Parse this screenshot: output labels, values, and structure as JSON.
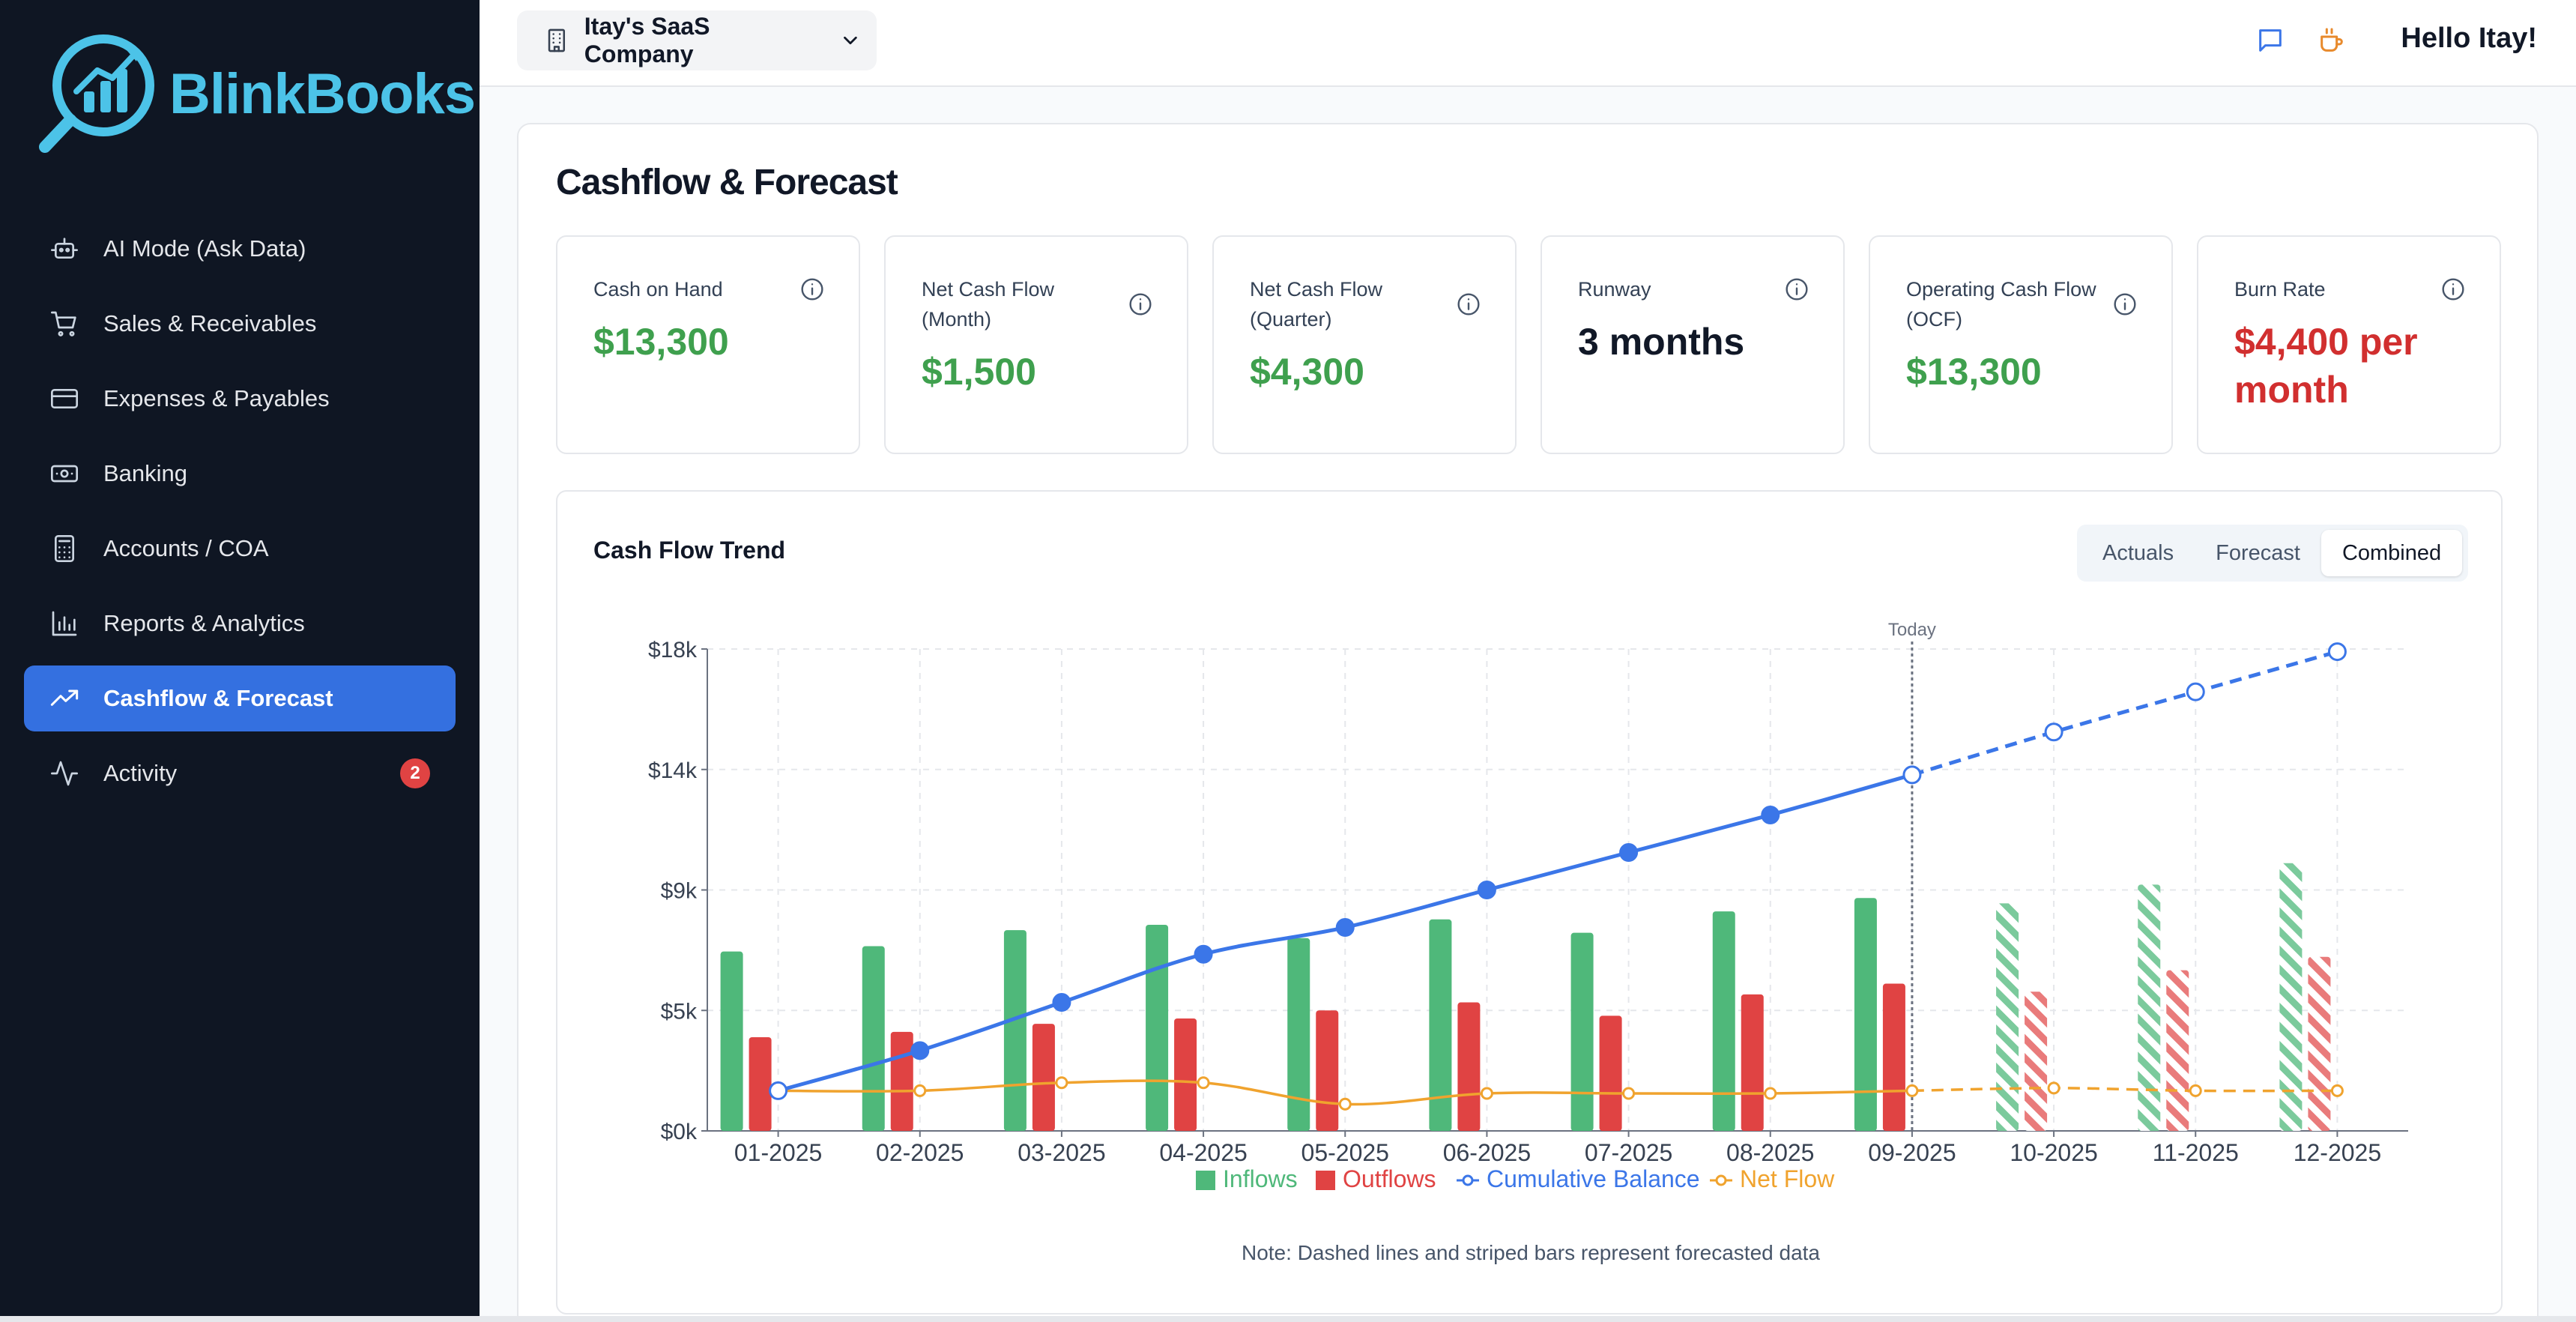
{
  "app": {
    "brand": "BlinkBooks",
    "accent": "#3470e0",
    "logo_color": "#4cc3e8"
  },
  "sidebar": {
    "items": [
      {
        "label": "AI Mode (Ask Data)",
        "icon": "robot-icon"
      },
      {
        "label": "Sales & Receivables",
        "icon": "cart-icon"
      },
      {
        "label": "Expenses & Payables",
        "icon": "credit-card-icon"
      },
      {
        "label": "Banking",
        "icon": "banknote-icon"
      },
      {
        "label": "Accounts / COA",
        "icon": "calculator-icon"
      },
      {
        "label": "Reports & Analytics",
        "icon": "bar-chart-icon"
      },
      {
        "label": "Cashflow & Forecast",
        "icon": "trending-up-icon",
        "active": true
      },
      {
        "label": "Activity",
        "icon": "activity-icon",
        "badge": "2"
      }
    ]
  },
  "header": {
    "company": "Itay's SaaS Company",
    "greeting": "Hello Itay!"
  },
  "page": {
    "title": "Cashflow & Forecast"
  },
  "kpis": [
    {
      "label": "Cash on Hand",
      "value": "$13,300",
      "color": "#3fa04e"
    },
    {
      "label": "Net Cash Flow (Month)",
      "value": "$1,500",
      "color": "#3fa04e"
    },
    {
      "label": "Net Cash Flow (Quarter)",
      "value": "$4,300",
      "color": "#3fa04e"
    },
    {
      "label": "Runway",
      "value": "3 months",
      "color": "#111827"
    },
    {
      "label": "Operating Cash Flow (OCF)",
      "value": "$13,300",
      "color": "#3fa04e"
    },
    {
      "label": "Burn Rate",
      "value": "$4,400 per month",
      "color": "#d12f2f"
    }
  ],
  "chart_section": {
    "title": "Cash Flow Trend",
    "toggle": [
      "Actuals",
      "Forecast",
      "Combined"
    ],
    "active_toggle": "Combined",
    "note": "Note: Dashed lines and striped bars represent forecasted data"
  },
  "chart_data": {
    "type": "bar",
    "categories": [
      "01-2025",
      "02-2025",
      "03-2025",
      "04-2025",
      "05-2025",
      "06-2025",
      "07-2025",
      "08-2025",
      "09-2025",
      "10-2025",
      "11-2025",
      "12-2025"
    ],
    "forecast_from_index": 9,
    "today_marker": {
      "at": "09-2025",
      "label": "Today"
    },
    "y_ticks": [
      "$0k",
      "$5k",
      "$9k",
      "$14k",
      "$18k"
    ],
    "y_tick_values": [
      0,
      4500,
      9000,
      13500,
      18000
    ],
    "ylim": [
      0,
      18000
    ],
    "grid": true,
    "legend_placement": "bottom",
    "series": [
      {
        "name": "Inflows",
        "kind": "bar",
        "color": "#4fb87a",
        "values": [
          6700,
          6900,
          7500,
          7700,
          7200,
          7900,
          7400,
          8200,
          8700,
          8500,
          9200,
          10000
        ]
      },
      {
        "name": "Outflows",
        "kind": "bar",
        "color": "#e04343",
        "values": [
          3500,
          3700,
          4000,
          4200,
          4500,
          4800,
          4300,
          5100,
          5500,
          5200,
          6000,
          6500
        ]
      },
      {
        "name": "Cumulative Balance",
        "kind": "line",
        "color": "#3b76e8",
        "values": [
          1500,
          3000,
          4800,
          6600,
          7600,
          9000,
          10400,
          11800,
          13300,
          14900,
          16400,
          17900
        ]
      },
      {
        "name": "Net Flow",
        "kind": "line",
        "color": "#f0a32e",
        "values": [
          1500,
          1500,
          1800,
          1800,
          1000,
          1400,
          1400,
          1400,
          1500,
          1600,
          1500,
          1500
        ]
      }
    ]
  }
}
